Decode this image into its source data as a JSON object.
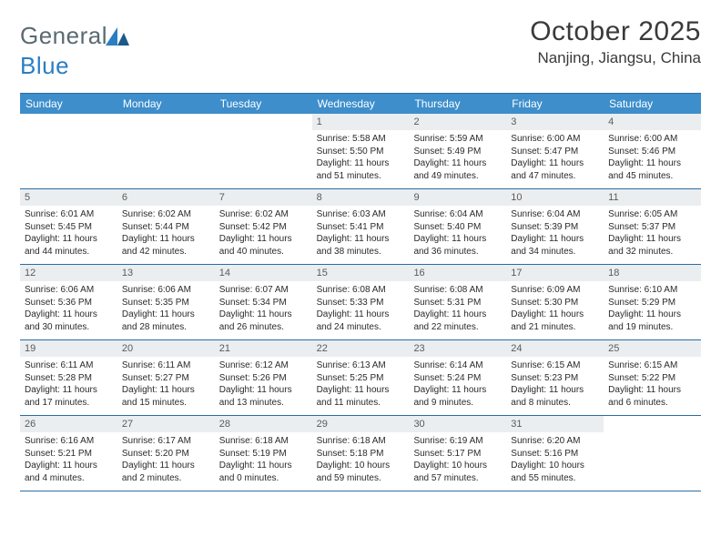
{
  "brand": {
    "text1": "General",
    "text2": "Blue",
    "logo_color": "#2b7ec2",
    "text_color_gray": "#5a6a72"
  },
  "title": "October 2025",
  "location": "Nanjing, Jiangsu, China",
  "colors": {
    "header_bg": "#3d8ecb",
    "border": "#2b6ca3",
    "daynum_bg": "#ebeef0",
    "text": "#2a2a2a"
  },
  "day_names": [
    "Sunday",
    "Monday",
    "Tuesday",
    "Wednesday",
    "Thursday",
    "Friday",
    "Saturday"
  ],
  "weeks": [
    [
      {
        "empty": true
      },
      {
        "empty": true
      },
      {
        "empty": true
      },
      {
        "day": "1",
        "sunrise": "Sunrise: 5:58 AM",
        "sunset": "Sunset: 5:50 PM",
        "daylight": "Daylight: 11 hours and 51 minutes."
      },
      {
        "day": "2",
        "sunrise": "Sunrise: 5:59 AM",
        "sunset": "Sunset: 5:49 PM",
        "daylight": "Daylight: 11 hours and 49 minutes."
      },
      {
        "day": "3",
        "sunrise": "Sunrise: 6:00 AM",
        "sunset": "Sunset: 5:47 PM",
        "daylight": "Daylight: 11 hours and 47 minutes."
      },
      {
        "day": "4",
        "sunrise": "Sunrise: 6:00 AM",
        "sunset": "Sunset: 5:46 PM",
        "daylight": "Daylight: 11 hours and 45 minutes."
      }
    ],
    [
      {
        "day": "5",
        "sunrise": "Sunrise: 6:01 AM",
        "sunset": "Sunset: 5:45 PM",
        "daylight": "Daylight: 11 hours and 44 minutes."
      },
      {
        "day": "6",
        "sunrise": "Sunrise: 6:02 AM",
        "sunset": "Sunset: 5:44 PM",
        "daylight": "Daylight: 11 hours and 42 minutes."
      },
      {
        "day": "7",
        "sunrise": "Sunrise: 6:02 AM",
        "sunset": "Sunset: 5:42 PM",
        "daylight": "Daylight: 11 hours and 40 minutes."
      },
      {
        "day": "8",
        "sunrise": "Sunrise: 6:03 AM",
        "sunset": "Sunset: 5:41 PM",
        "daylight": "Daylight: 11 hours and 38 minutes."
      },
      {
        "day": "9",
        "sunrise": "Sunrise: 6:04 AM",
        "sunset": "Sunset: 5:40 PM",
        "daylight": "Daylight: 11 hours and 36 minutes."
      },
      {
        "day": "10",
        "sunrise": "Sunrise: 6:04 AM",
        "sunset": "Sunset: 5:39 PM",
        "daylight": "Daylight: 11 hours and 34 minutes."
      },
      {
        "day": "11",
        "sunrise": "Sunrise: 6:05 AM",
        "sunset": "Sunset: 5:37 PM",
        "daylight": "Daylight: 11 hours and 32 minutes."
      }
    ],
    [
      {
        "day": "12",
        "sunrise": "Sunrise: 6:06 AM",
        "sunset": "Sunset: 5:36 PM",
        "daylight": "Daylight: 11 hours and 30 minutes."
      },
      {
        "day": "13",
        "sunrise": "Sunrise: 6:06 AM",
        "sunset": "Sunset: 5:35 PM",
        "daylight": "Daylight: 11 hours and 28 minutes."
      },
      {
        "day": "14",
        "sunrise": "Sunrise: 6:07 AM",
        "sunset": "Sunset: 5:34 PM",
        "daylight": "Daylight: 11 hours and 26 minutes."
      },
      {
        "day": "15",
        "sunrise": "Sunrise: 6:08 AM",
        "sunset": "Sunset: 5:33 PM",
        "daylight": "Daylight: 11 hours and 24 minutes."
      },
      {
        "day": "16",
        "sunrise": "Sunrise: 6:08 AM",
        "sunset": "Sunset: 5:31 PM",
        "daylight": "Daylight: 11 hours and 22 minutes."
      },
      {
        "day": "17",
        "sunrise": "Sunrise: 6:09 AM",
        "sunset": "Sunset: 5:30 PM",
        "daylight": "Daylight: 11 hours and 21 minutes."
      },
      {
        "day": "18",
        "sunrise": "Sunrise: 6:10 AM",
        "sunset": "Sunset: 5:29 PM",
        "daylight": "Daylight: 11 hours and 19 minutes."
      }
    ],
    [
      {
        "day": "19",
        "sunrise": "Sunrise: 6:11 AM",
        "sunset": "Sunset: 5:28 PM",
        "daylight": "Daylight: 11 hours and 17 minutes."
      },
      {
        "day": "20",
        "sunrise": "Sunrise: 6:11 AM",
        "sunset": "Sunset: 5:27 PM",
        "daylight": "Daylight: 11 hours and 15 minutes."
      },
      {
        "day": "21",
        "sunrise": "Sunrise: 6:12 AM",
        "sunset": "Sunset: 5:26 PM",
        "daylight": "Daylight: 11 hours and 13 minutes."
      },
      {
        "day": "22",
        "sunrise": "Sunrise: 6:13 AM",
        "sunset": "Sunset: 5:25 PM",
        "daylight": "Daylight: 11 hours and 11 minutes."
      },
      {
        "day": "23",
        "sunrise": "Sunrise: 6:14 AM",
        "sunset": "Sunset: 5:24 PM",
        "daylight": "Daylight: 11 hours and 9 minutes."
      },
      {
        "day": "24",
        "sunrise": "Sunrise: 6:15 AM",
        "sunset": "Sunset: 5:23 PM",
        "daylight": "Daylight: 11 hours and 8 minutes."
      },
      {
        "day": "25",
        "sunrise": "Sunrise: 6:15 AM",
        "sunset": "Sunset: 5:22 PM",
        "daylight": "Daylight: 11 hours and 6 minutes."
      }
    ],
    [
      {
        "day": "26",
        "sunrise": "Sunrise: 6:16 AM",
        "sunset": "Sunset: 5:21 PM",
        "daylight": "Daylight: 11 hours and 4 minutes."
      },
      {
        "day": "27",
        "sunrise": "Sunrise: 6:17 AM",
        "sunset": "Sunset: 5:20 PM",
        "daylight": "Daylight: 11 hours and 2 minutes."
      },
      {
        "day": "28",
        "sunrise": "Sunrise: 6:18 AM",
        "sunset": "Sunset: 5:19 PM",
        "daylight": "Daylight: 11 hours and 0 minutes."
      },
      {
        "day": "29",
        "sunrise": "Sunrise: 6:18 AM",
        "sunset": "Sunset: 5:18 PM",
        "daylight": "Daylight: 10 hours and 59 minutes."
      },
      {
        "day": "30",
        "sunrise": "Sunrise: 6:19 AM",
        "sunset": "Sunset: 5:17 PM",
        "daylight": "Daylight: 10 hours and 57 minutes."
      },
      {
        "day": "31",
        "sunrise": "Sunrise: 6:20 AM",
        "sunset": "Sunset: 5:16 PM",
        "daylight": "Daylight: 10 hours and 55 minutes."
      },
      {
        "empty": true
      }
    ]
  ]
}
